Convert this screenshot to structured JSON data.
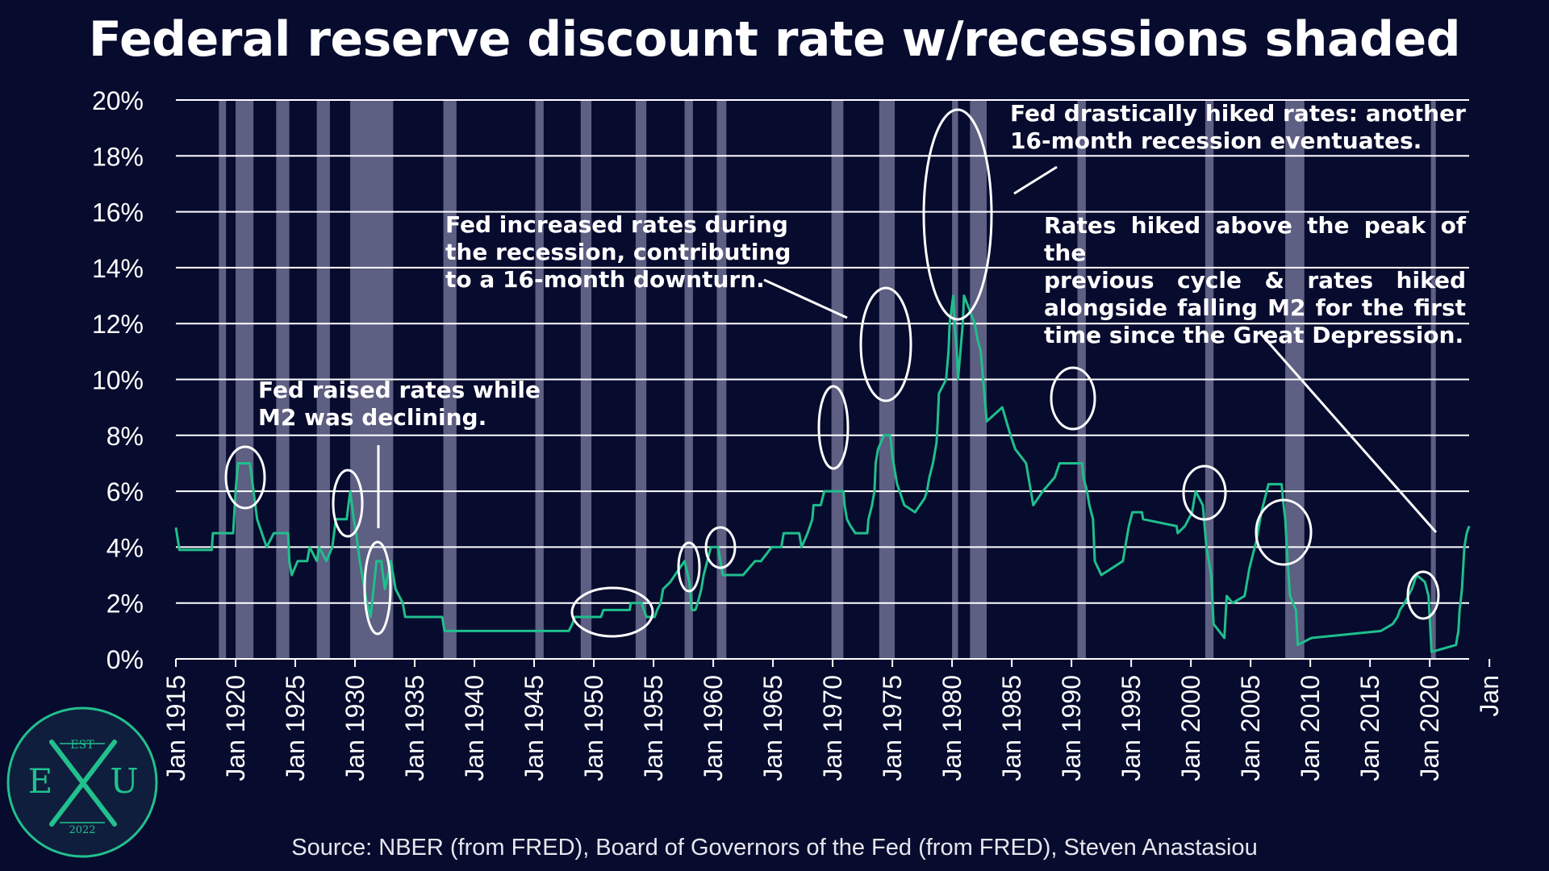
{
  "title": "Federal reserve discount rate w/recessions shaded",
  "source": "Source: NBER (from FRED), Board of Governors of the Fed (from FRED), Steven Anastasiou",
  "logo": {
    "top": "EST",
    "left": "E",
    "right": "U",
    "bottom": "2022",
    "accent_color": "#22c08d"
  },
  "colors": {
    "background": "#070b2e",
    "line": "#1fbf8c",
    "recession": "#5d5f83",
    "grid": "#ffffff"
  },
  "annotations": {
    "a1920s": [
      "Fed raised rates while",
      "M2 was declining."
    ],
    "a1970": [
      "Fed increased rates during",
      "the recession, contributing",
      "to a 16-month downturn."
    ],
    "a1980": [
      "Fed drastically hiked rates: another",
      "16-month recession eventuates."
    ],
    "a2022": [
      "Rates hiked above the peak of the",
      "previous cycle & rates hiked",
      "alongside falling M2 for the first",
      "time since the Great Depression."
    ]
  },
  "chart_data": {
    "type": "line",
    "title": "Federal reserve discount rate w/recessions shaded",
    "y_unit": "%",
    "ylim": [
      0,
      20
    ],
    "y_ticks": [
      "0%",
      "2%",
      "4%",
      "6%",
      "8%",
      "10%",
      "12%",
      "14%",
      "16%",
      "18%",
      "20%"
    ],
    "xlim": [
      1915,
      2023.3
    ],
    "x_ticks": [
      "Jan 1915",
      "Jan 1920",
      "Jan 1925",
      "Jan 1930",
      "Jan 1935",
      "Jan 1940",
      "Jan 1945",
      "Jan 1950",
      "Jan 1955",
      "Jan 1960",
      "Jan 1965",
      "Jan 1970",
      "Jan 1975",
      "Jan 1980",
      "Jan 1985",
      "Jan 1990",
      "Jan 1995",
      "Jan 2000",
      "Jan 2005",
      "Jan 2010",
      "Jan 2015",
      "Jan 2020",
      "Jan"
    ],
    "grid": true,
    "recessions": [
      [
        1918.6,
        1919.2
      ],
      [
        1920.0,
        1921.5
      ],
      [
        1923.4,
        1924.5
      ],
      [
        1926.8,
        1927.9
      ],
      [
        1929.6,
        1933.2
      ],
      [
        1937.4,
        1938.5
      ],
      [
        1945.1,
        1945.8
      ],
      [
        1948.9,
        1949.8
      ],
      [
        1953.5,
        1954.4
      ],
      [
        1957.6,
        1958.3
      ],
      [
        1960.3,
        1961.1
      ],
      [
        1969.9,
        1970.9
      ],
      [
        1973.9,
        1975.2
      ],
      [
        1980.0,
        1980.5
      ],
      [
        1981.5,
        1982.9
      ],
      [
        1990.5,
        1991.2
      ],
      [
        2001.2,
        2001.9
      ],
      [
        2007.9,
        2009.5
      ],
      [
        2020.1,
        2020.3
      ]
    ],
    "series": [
      {
        "values": [
          [
            1915.0,
            4.7
          ],
          [
            1915.3,
            3.9
          ],
          [
            1918.0,
            3.9
          ],
          [
            1918.1,
            4.5
          ],
          [
            1919.8,
            4.5
          ],
          [
            1920.0,
            6.0
          ],
          [
            1920.2,
            7.0
          ],
          [
            1921.2,
            7.0
          ],
          [
            1921.5,
            6.0
          ],
          [
            1921.8,
            5.0
          ],
          [
            1922.2,
            4.5
          ],
          [
            1922.6,
            4.0
          ],
          [
            1923.2,
            4.5
          ],
          [
            1924.4,
            4.5
          ],
          [
            1924.5,
            3.5
          ],
          [
            1924.7,
            3.0
          ],
          [
            1925.2,
            3.5
          ],
          [
            1926.0,
            3.5
          ],
          [
            1926.2,
            4.0
          ],
          [
            1926.8,
            3.5
          ],
          [
            1927.0,
            4.0
          ],
          [
            1927.6,
            3.5
          ],
          [
            1928.1,
            4.0
          ],
          [
            1928.4,
            5.0
          ],
          [
            1929.3,
            5.0
          ],
          [
            1929.6,
            6.0
          ],
          [
            1929.9,
            5.0
          ],
          [
            1930.1,
            4.5
          ],
          [
            1930.4,
            3.5
          ],
          [
            1931.0,
            2.0
          ],
          [
            1931.3,
            1.5
          ],
          [
            1931.8,
            3.5
          ],
          [
            1932.2,
            3.5
          ],
          [
            1932.5,
            2.5
          ],
          [
            1933.0,
            3.5
          ],
          [
            1933.4,
            2.5
          ],
          [
            1934.0,
            2.0
          ],
          [
            1934.2,
            1.5
          ],
          [
            1937.3,
            1.5
          ],
          [
            1937.5,
            1.0
          ],
          [
            1947.9,
            1.0
          ],
          [
            1948.2,
            1.25
          ],
          [
            1948.4,
            1.5
          ],
          [
            1950.6,
            1.5
          ],
          [
            1950.8,
            1.75
          ],
          [
            1953.0,
            1.75
          ],
          [
            1953.1,
            2.0
          ],
          [
            1954.0,
            2.0
          ],
          [
            1954.2,
            1.75
          ],
          [
            1954.4,
            1.5
          ],
          [
            1955.1,
            1.5
          ],
          [
            1955.3,
            1.75
          ],
          [
            1955.6,
            2.0
          ],
          [
            1955.8,
            2.5
          ],
          [
            1956.4,
            2.75
          ],
          [
            1956.8,
            3.0
          ],
          [
            1957.6,
            3.5
          ],
          [
            1958.0,
            2.75
          ],
          [
            1958.2,
            1.75
          ],
          [
            1958.5,
            1.75
          ],
          [
            1958.7,
            2.0
          ],
          [
            1959.0,
            2.5
          ],
          [
            1959.2,
            3.0
          ],
          [
            1959.5,
            3.5
          ],
          [
            1959.8,
            4.0
          ],
          [
            1960.4,
            4.0
          ],
          [
            1960.6,
            3.5
          ],
          [
            1960.8,
            3.0
          ],
          [
            1961.6,
            3.0
          ],
          [
            1962.5,
            3.0
          ],
          [
            1963.5,
            3.5
          ],
          [
            1964.0,
            3.5
          ],
          [
            1964.9,
            4.0
          ],
          [
            1965.7,
            4.0
          ],
          [
            1965.9,
            4.5
          ],
          [
            1967.2,
            4.5
          ],
          [
            1967.4,
            4.0
          ],
          [
            1967.9,
            4.5
          ],
          [
            1968.3,
            5.0
          ],
          [
            1968.4,
            5.5
          ],
          [
            1969.0,
            5.5
          ],
          [
            1969.3,
            6.0
          ],
          [
            1970.9,
            6.0
          ],
          [
            1971.0,
            5.5
          ],
          [
            1971.2,
            5.0
          ],
          [
            1971.5,
            4.75
          ],
          [
            1971.9,
            4.5
          ],
          [
            1972.9,
            4.5
          ],
          [
            1973.0,
            5.0
          ],
          [
            1973.3,
            5.5
          ],
          [
            1973.5,
            6.0
          ],
          [
            1973.6,
            7.0
          ],
          [
            1973.8,
            7.5
          ],
          [
            1974.3,
            8.0
          ],
          [
            1974.8,
            8.0
          ],
          [
            1974.9,
            7.75
          ],
          [
            1975.0,
            7.25
          ],
          [
            1975.2,
            6.75
          ],
          [
            1975.4,
            6.25
          ],
          [
            1975.6,
            6.0
          ],
          [
            1976.0,
            5.5
          ],
          [
            1976.9,
            5.25
          ],
          [
            1977.7,
            5.75
          ],
          [
            1977.9,
            6.0
          ],
          [
            1978.1,
            6.5
          ],
          [
            1978.4,
            7.0
          ],
          [
            1978.7,
            7.75
          ],
          [
            1978.8,
            8.5
          ],
          [
            1978.9,
            9.5
          ],
          [
            1979.5,
            10.0
          ],
          [
            1979.7,
            11.0
          ],
          [
            1979.8,
            12.0
          ],
          [
            1980.1,
            13.0
          ],
          [
            1980.2,
            12.0
          ],
          [
            1980.4,
            11.0
          ],
          [
            1980.5,
            10.0
          ],
          [
            1980.9,
            12.0
          ],
          [
            1981.0,
            13.0
          ],
          [
            1981.9,
            12.0
          ],
          [
            1982.1,
            11.5
          ],
          [
            1982.4,
            11.0
          ],
          [
            1982.6,
            10.0
          ],
          [
            1982.7,
            9.5
          ],
          [
            1982.9,
            8.5
          ],
          [
            1984.2,
            9.0
          ],
          [
            1984.9,
            8.0
          ],
          [
            1985.3,
            7.5
          ],
          [
            1986.2,
            7.0
          ],
          [
            1986.4,
            6.5
          ],
          [
            1986.6,
            6.0
          ],
          [
            1986.8,
            5.5
          ],
          [
            1987.6,
            6.0
          ],
          [
            1988.6,
            6.5
          ],
          [
            1989.0,
            7.0
          ],
          [
            1990.9,
            7.0
          ],
          [
            1991.0,
            6.5
          ],
          [
            1991.3,
            6.0
          ],
          [
            1991.5,
            5.5
          ],
          [
            1991.8,
            5.0
          ],
          [
            1991.95,
            3.5
          ],
          [
            1992.5,
            3.0
          ],
          [
            1994.3,
            3.5
          ],
          [
            1994.5,
            4.0
          ],
          [
            1994.8,
            4.75
          ],
          [
            1995.1,
            5.25
          ],
          [
            1995.9,
            5.25
          ],
          [
            1996.0,
            5.0
          ],
          [
            1998.8,
            4.75
          ],
          [
            1998.9,
            4.5
          ],
          [
            1999.5,
            4.75
          ],
          [
            1999.8,
            5.0
          ],
          [
            2000.1,
            5.25
          ],
          [
            2000.4,
            6.0
          ],
          [
            2001.0,
            5.5
          ],
          [
            2001.3,
            4.0
          ],
          [
            2001.7,
            3.0
          ],
          [
            2001.9,
            1.25
          ],
          [
            2002.8,
            0.75
          ],
          [
            2003.0,
            2.25
          ],
          [
            2003.5,
            2.0
          ],
          [
            2004.5,
            2.25
          ],
          [
            2004.9,
            3.25
          ],
          [
            2005.5,
            4.25
          ],
          [
            2005.9,
            5.25
          ],
          [
            2006.5,
            6.25
          ],
          [
            2007.6,
            6.25
          ],
          [
            2007.7,
            5.75
          ],
          [
            2007.9,
            5.0
          ],
          [
            2008.1,
            3.5
          ],
          [
            2008.3,
            2.25
          ],
          [
            2008.8,
            1.75
          ],
          [
            2008.95,
            0.5
          ],
          [
            2010.1,
            0.75
          ],
          [
            2015.9,
            1.0
          ],
          [
            2016.9,
            1.25
          ],
          [
            2017.3,
            1.5
          ],
          [
            2017.5,
            1.75
          ],
          [
            2017.9,
            2.0
          ],
          [
            2018.2,
            2.25
          ],
          [
            2018.5,
            2.5
          ],
          [
            2018.9,
            3.0
          ],
          [
            2019.6,
            2.75
          ],
          [
            2019.9,
            2.25
          ],
          [
            2020.15,
            0.25
          ],
          [
            2022.2,
            0.5
          ],
          [
            2022.4,
            1.0
          ],
          [
            2022.5,
            1.75
          ],
          [
            2022.7,
            2.5
          ],
          [
            2022.8,
            3.25
          ],
          [
            2022.9,
            4.0
          ],
          [
            2023.1,
            4.5
          ],
          [
            2023.3,
            4.75
          ]
        ]
      }
    ]
  }
}
